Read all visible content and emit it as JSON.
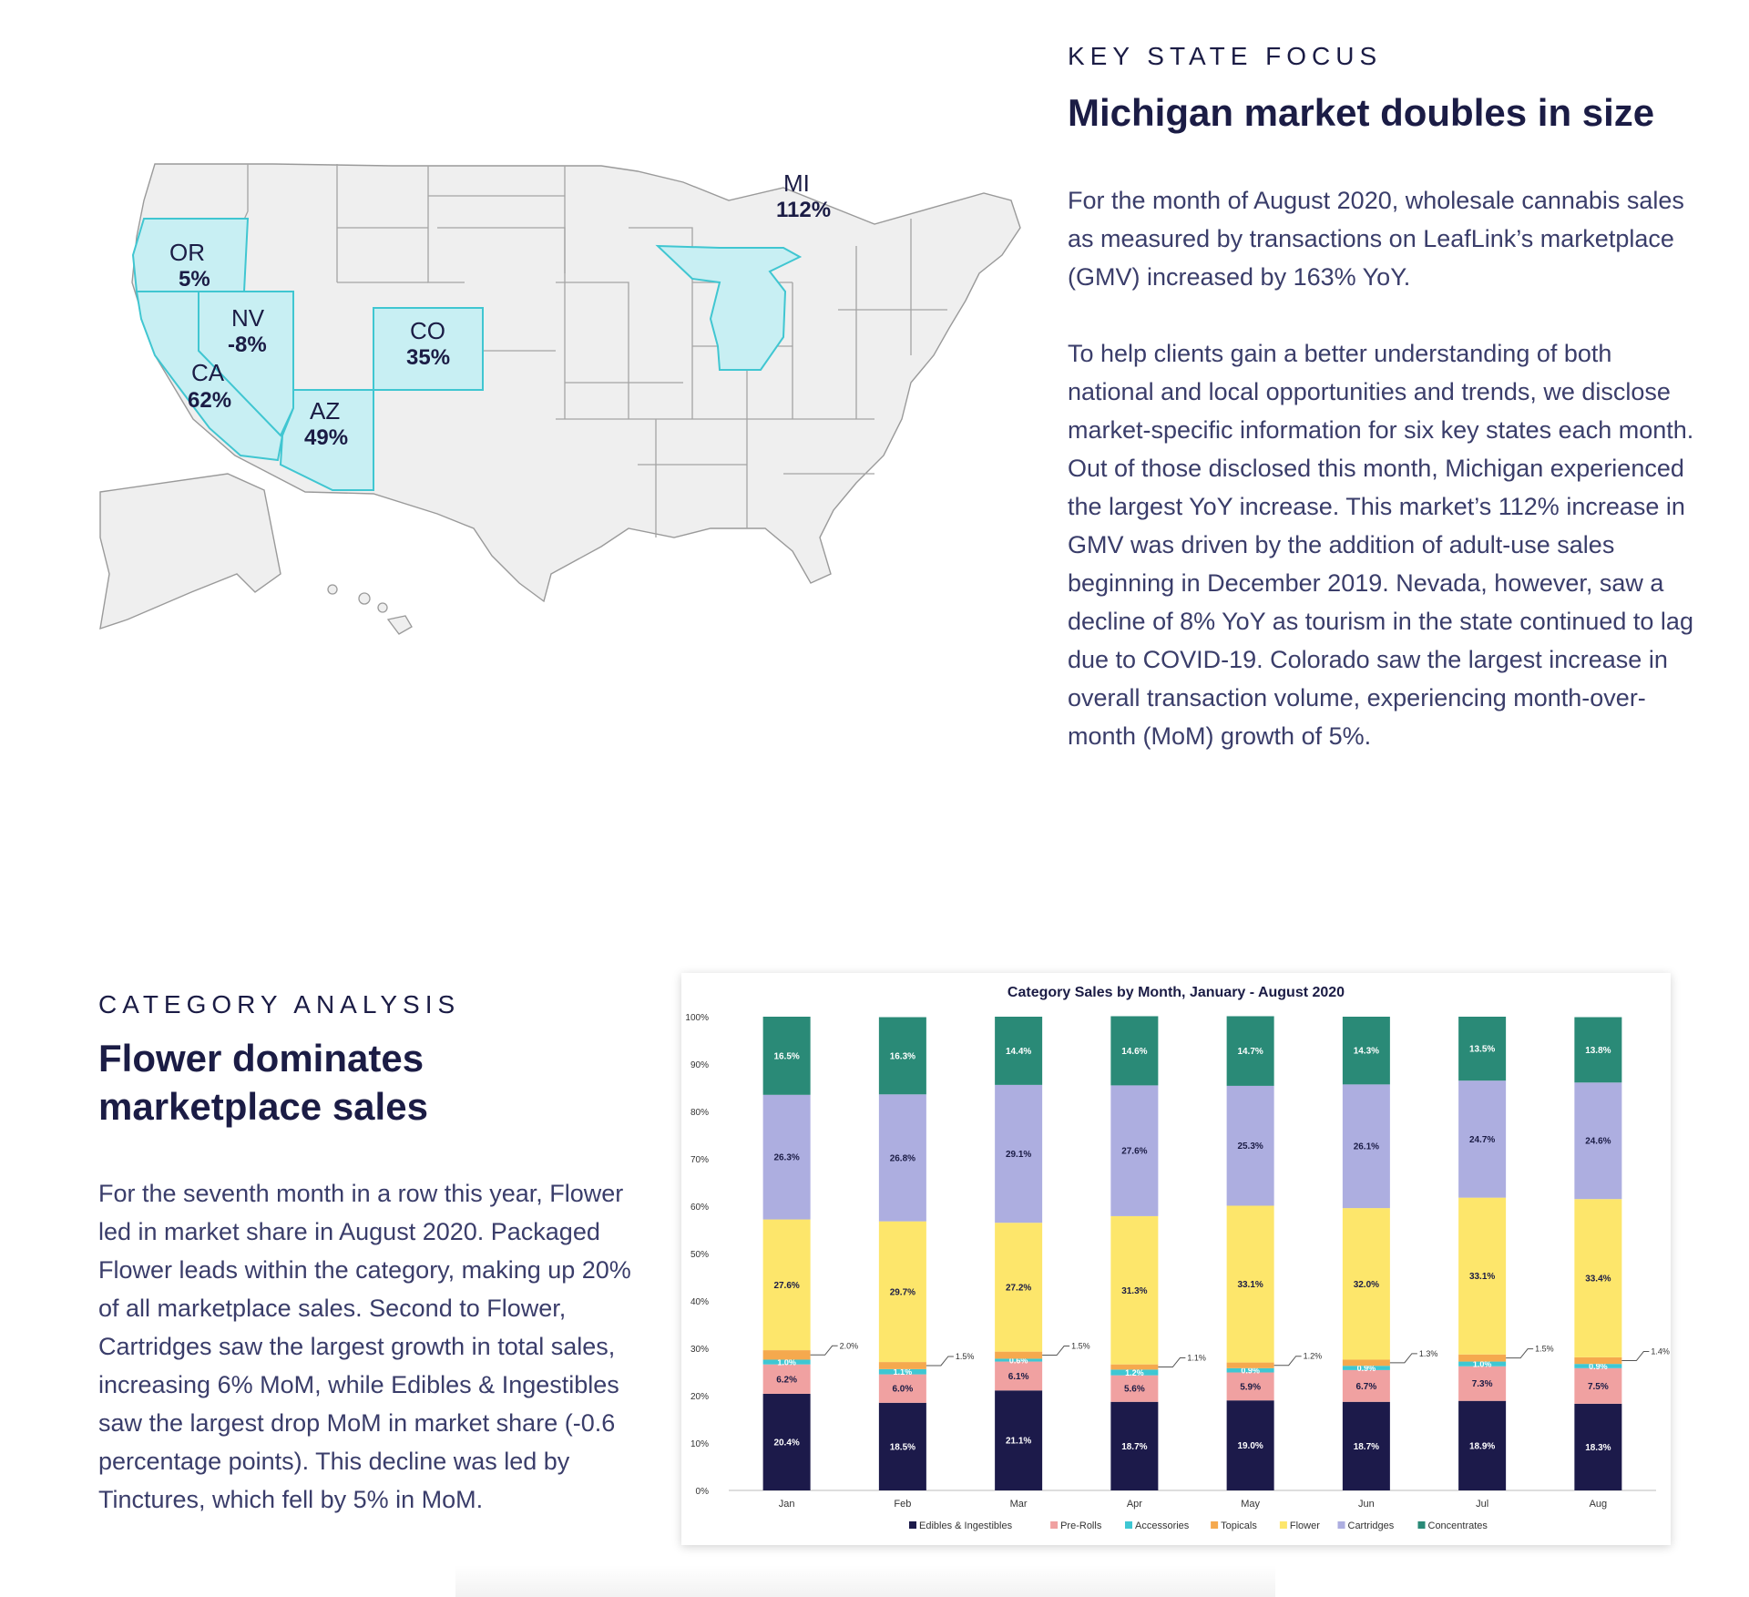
{
  "state_focus": {
    "eyebrow": "KEY STATE FOCUS",
    "headline": "Michigan market doubles in size",
    "paragraphs": [
      "For the month of August 2020, wholesale cannabis sales as measured by transactions on LeafLink’s marketplace  (GMV)  increased by 163% YoY.",
      "To help clients gain a better understanding of both national and local opportunities and trends, we disclose market-specific information for six key states each month. Out of those disclosed this month, Michigan  experienced the largest YoY increase. This market’s 112% increase in GMV was driven by the addition of adult-use sales beginning in December 2019. Nevada, however, saw a decline of 8% YoY as tourism in the state continued to lag due to COVID-19. Colorado saw the largest increase in overall transaction volume, experiencing month-over-month (MoM) growth of 5%."
    ]
  },
  "map": {
    "highlight_color": "#c8eff3",
    "highlight_stroke": "#40c6d1",
    "states": [
      {
        "code": "OR",
        "pct": "5%"
      },
      {
        "code": "NV",
        "pct": "-8%"
      },
      {
        "code": "CA",
        "pct": "62%"
      },
      {
        "code": "AZ",
        "pct": "49%"
      },
      {
        "code": "CO",
        "pct": "35%"
      },
      {
        "code": "MI",
        "pct": "112%"
      }
    ]
  },
  "category_analysis": {
    "eyebrow": "CATEGORY ANALYSIS",
    "headline_line1": "Flower dominates",
    "headline_line2": "marketplace sales",
    "paragraph": "For the seventh month in a row this year, Flower led in market share in August 2020. Packaged Flower leads within the category, making up 20% of all marketplace sales. Second to Flower, Cartridges saw the largest growth in total sales, increasing 6% MoM, while Edibles & Ingestibles saw the largest drop MoM in market share (-0.6 percentage points). This decline was led by Tinctures, which fell by 5% in MoM."
  },
  "chart_data": {
    "type": "bar",
    "stacked": true,
    "title": "Category Sales by Month, January - August 2020",
    "xlabel": "",
    "ylabel": "",
    "ylim": [
      0,
      100
    ],
    "yticks": [
      "0%",
      "10%",
      "20%",
      "30%",
      "40%",
      "50%",
      "60%",
      "70%",
      "80%",
      "90%",
      "100%"
    ],
    "categories": [
      "Jan",
      "Feb",
      "Mar",
      "Apr",
      "May",
      "Jun",
      "Jul",
      "Aug"
    ],
    "legend_position": "bottom",
    "series": [
      {
        "name": "Edibles & Ingestibles",
        "color": "#1c1a4a",
        "values": [
          20.4,
          18.5,
          21.1,
          18.7,
          19.0,
          18.7,
          18.9,
          18.3
        ],
        "labels": [
          "20.4%",
          "18.5%",
          "21.1%",
          "18.7%",
          "19.0%",
          "18.7%",
          "18.9%",
          "18.3%"
        ]
      },
      {
        "name": "Pre-Rolls",
        "color": "#f0a1a1",
        "values": [
          6.2,
          6.0,
          6.1,
          5.6,
          5.9,
          6.7,
          7.3,
          7.5
        ],
        "labels": [
          "6.2%",
          "6.0%",
          "6.1%",
          "5.6%",
          "5.9%",
          "6.7%",
          "7.3%",
          "7.5%"
        ]
      },
      {
        "name": "Accessories",
        "color": "#3ec7d3",
        "values": [
          1.0,
          1.1,
          0.6,
          1.2,
          0.9,
          0.9,
          1.0,
          0.9
        ],
        "labels": [
          "1.0%",
          "1.1%",
          "0.6%",
          "1.2%",
          "0.9%",
          "0.9%",
          "1.0%",
          "0.9%"
        ]
      },
      {
        "name": "Topicals",
        "color": "#f5a94e",
        "values": [
          2.0,
          1.5,
          1.5,
          1.1,
          1.2,
          1.3,
          1.5,
          1.4
        ],
        "labels": [
          "2.0%",
          "1.5%",
          "1.5%",
          "1.1%",
          "1.2%",
          "1.3%",
          "1.5%",
          "1.4%"
        ]
      },
      {
        "name": "Flower",
        "color": "#fde66b",
        "values": [
          27.6,
          29.7,
          27.2,
          31.3,
          33.1,
          32.0,
          33.1,
          33.4
        ],
        "labels": [
          "27.6%",
          "29.7%",
          "27.2%",
          "31.3%",
          "33.1%",
          "32.0%",
          "33.1%",
          "33.4%"
        ]
      },
      {
        "name": "Cartridges",
        "color": "#adaee0",
        "values": [
          26.3,
          26.8,
          29.1,
          27.6,
          25.3,
          26.1,
          24.7,
          24.6
        ],
        "labels": [
          "26.3%",
          "26.8%",
          "29.1%",
          "27.6%",
          "25.3%",
          "26.1%",
          "24.7%",
          "24.6%"
        ]
      },
      {
        "name": "Concentrates",
        "color": "#2a8a77",
        "values": [
          16.5,
          16.3,
          14.4,
          14.6,
          14.7,
          14.3,
          13.5,
          13.8
        ],
        "labels": [
          "16.5%",
          "16.3%",
          "14.4%",
          "14.6%",
          "14.7%",
          "14.3%",
          "13.5%",
          "13.8%"
        ]
      }
    ]
  }
}
